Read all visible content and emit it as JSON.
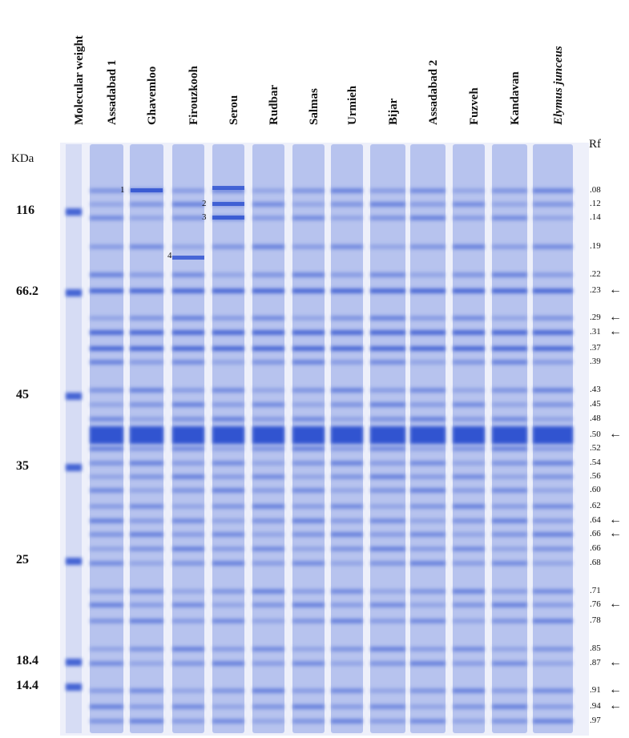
{
  "lanes": [
    {
      "label": "Molecular weight",
      "italic": false
    },
    {
      "label": "Assadabad 1",
      "italic": false
    },
    {
      "label": "Ghavemloo",
      "italic": false
    },
    {
      "label": "Firouzkooh",
      "italic": false
    },
    {
      "label": "Serou",
      "italic": false
    },
    {
      "label": "Rudbar",
      "italic": false
    },
    {
      "label": "Salmas",
      "italic": false
    },
    {
      "label": "Urmieh",
      "italic": false
    },
    {
      "label": "Bijar",
      "italic": false
    },
    {
      "label": "Assadabad 2",
      "italic": false
    },
    {
      "label": "Fuzveh",
      "italic": false
    },
    {
      "label": "Kandavan",
      "italic": false
    },
    {
      "label": "Elymus junceus",
      "italic": true
    }
  ],
  "kda_header": "KDa",
  "rf_header": "Rf",
  "mw_markers": [
    "116",
    "66.2",
    "45",
    "35",
    "25",
    "18.4",
    "14.4"
  ],
  "rf_values": [
    ".08",
    ".12",
    ".14",
    ".19",
    ".22",
    ".23",
    ".29",
    ".31",
    ".37",
    ".39",
    ".43",
    ".45",
    ".48",
    ".50",
    ".52",
    ".54",
    ".56",
    ".60",
    ".62",
    ".64",
    ".66",
    ".66",
    ".68",
    ".71",
    ".76",
    ".78",
    ".85",
    ".87",
    ".91",
    ".94",
    ".97"
  ],
  "arrowed_rf": [
    ".23",
    ".29",
    ".31",
    ".50",
    ".64",
    ".66",
    ".76",
    ".87",
    ".91",
    ".94"
  ],
  "arrow_glyph": "←",
  "band_labels": [
    "1",
    "2",
    "3",
    "4"
  ],
  "colors": {
    "stain": "#2a4fcf",
    "gel": "#eef0fa",
    "text": "#111111"
  }
}
